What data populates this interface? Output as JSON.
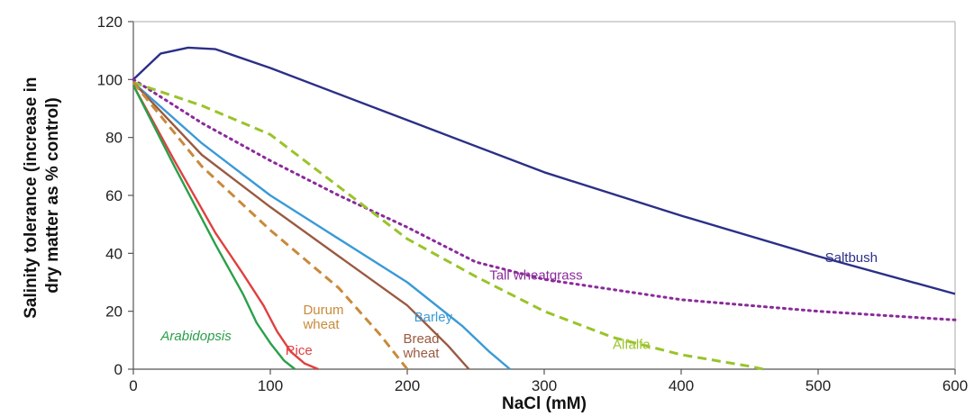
{
  "chart_data": {
    "type": "line",
    "title": "",
    "xlabel": "NaCl (mM)",
    "ylabel_lines": [
      "Salinity tolerance (increase in",
      "dry matter as % control)"
    ],
    "xlim": [
      0,
      600
    ],
    "ylim": [
      0,
      120
    ],
    "x_ticks": [
      0,
      100,
      200,
      300,
      400,
      500,
      600
    ],
    "y_ticks": [
      0,
      20,
      40,
      60,
      80,
      100,
      120
    ],
    "grid": false,
    "legend": "inline labels",
    "series": [
      {
        "name": "Saltbush",
        "color": "#2b2f86",
        "dash": "solid",
        "x": [
          0,
          20,
          40,
          60,
          100,
          200,
          300,
          400,
          500,
          600
        ],
        "y": [
          100,
          109,
          111,
          110.5,
          104,
          86,
          68,
          53,
          39,
          26
        ],
        "label_at": [
          505,
          37
        ]
      },
      {
        "name": "Tall wheatgrass",
        "color": "#8a2a9a",
        "dash": "dotted",
        "x": [
          0,
          50,
          100,
          150,
          200,
          250,
          300,
          400,
          500,
          600
        ],
        "y": [
          100,
          85,
          72,
          60,
          49,
          37,
          31,
          24,
          20,
          17
        ],
        "label_at": [
          260,
          31
        ]
      },
      {
        "name": "Alfalfa",
        "color": "#9ac32a",
        "dash": "dashed",
        "x": [
          0,
          50,
          100,
          150,
          200,
          250,
          300,
          350,
          400,
          450,
          460
        ],
        "y": [
          99,
          91,
          81,
          63,
          45,
          32,
          20,
          11,
          5,
          1,
          0
        ],
        "label_at": [
          350,
          7
        ]
      },
      {
        "name": "Barley",
        "color": "#3a9ad6",
        "dash": "solid",
        "x": [
          0,
          50,
          100,
          150,
          200,
          240,
          260,
          275
        ],
        "y": [
          99,
          78,
          60,
          45,
          30,
          15,
          6,
          0
        ],
        "label_at": [
          205,
          16.5
        ]
      },
      {
        "name": "Bread wheat",
        "color": "#9a5a40",
        "dash": "solid",
        "x": [
          0,
          50,
          100,
          150,
          200,
          230,
          245
        ],
        "y": [
          99,
          74,
          56,
          39,
          22,
          8,
          0
        ],
        "label_lines": [
          "Bread",
          "wheat"
        ],
        "label_at": [
          197,
          9
        ]
      },
      {
        "name": "Durum wheat",
        "color": "#c88a3a",
        "dash": "dashed",
        "x": [
          0,
          50,
          100,
          150,
          180,
          200
        ],
        "y": [
          99,
          70,
          48,
          28,
          12,
          0
        ],
        "label_lines": [
          "Durum",
          "wheat"
        ],
        "label_at": [
          124,
          19
        ]
      },
      {
        "name": "Rice",
        "color": "#e04040",
        "dash": "solid",
        "x": [
          0,
          30,
          60,
          80,
          95,
          105,
          115,
          125,
          135
        ],
        "y": [
          98,
          72,
          47,
          33,
          22,
          13,
          6,
          2,
          0
        ],
        "label_at": [
          111,
          5
        ]
      },
      {
        "name": "Arabidopsis",
        "color": "#2aa04a",
        "dash": "solid",
        "x": [
          0,
          30,
          60,
          80,
          90,
          100,
          110,
          118
        ],
        "y": [
          98,
          70,
          43,
          26,
          16,
          9,
          3,
          0
        ],
        "label_at": [
          20,
          10
        ],
        "label_italic": true
      }
    ]
  }
}
